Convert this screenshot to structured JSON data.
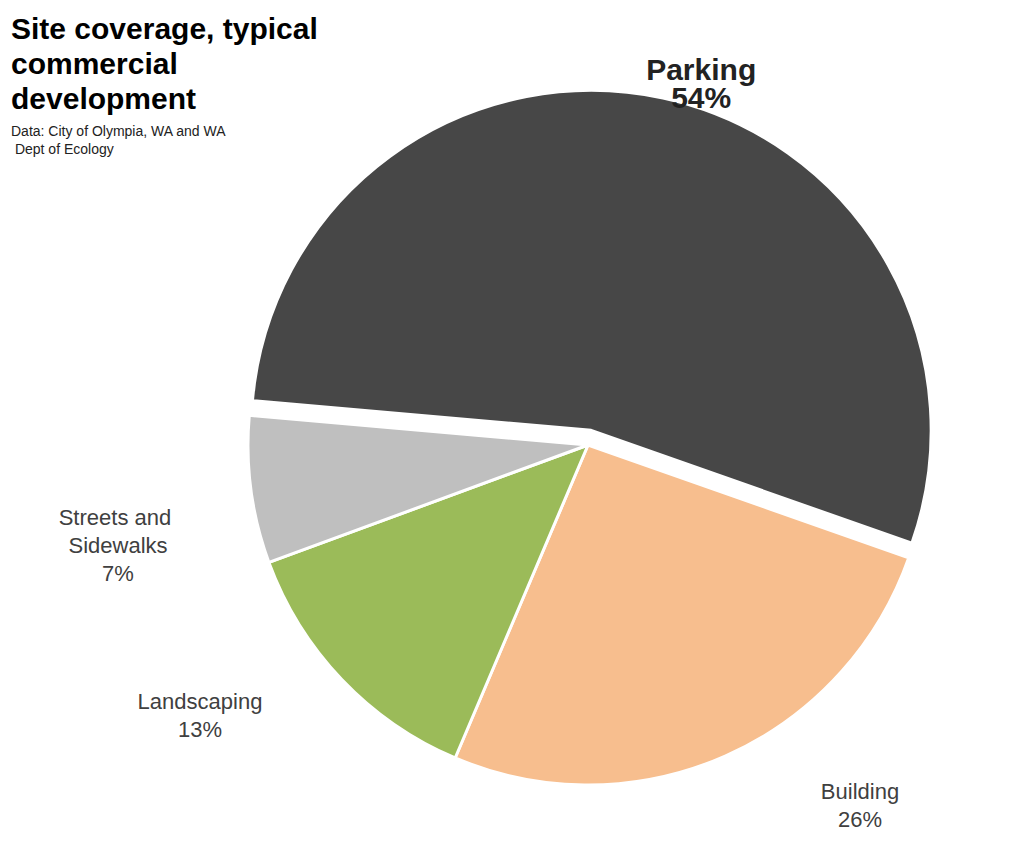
{
  "chart_data": {
    "type": "pie",
    "title": "Site coverage, typical commercial development",
    "subtitle": "Data: City of Olympia, WA and WA Dept of Ecology",
    "categories": [
      "Parking",
      "Building",
      "Landscaping",
      "Streets and Sidewalks"
    ],
    "values": [
      54,
      26,
      13,
      7
    ],
    "value_labels": [
      "54%",
      "26%",
      "13%",
      "7%"
    ],
    "colors": [
      "#474747",
      "#f7be8e",
      "#9bbb59",
      "#bfbfbf"
    ],
    "data_labels": true
  }
}
